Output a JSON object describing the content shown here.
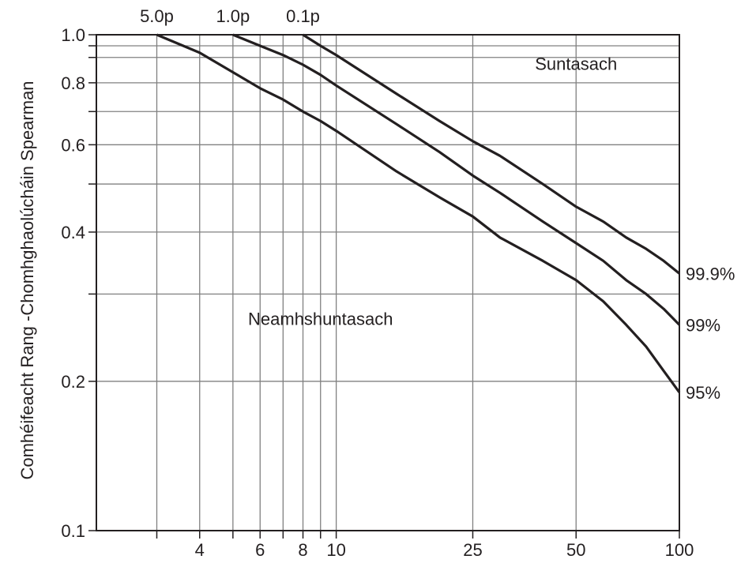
{
  "chart_data": {
    "type": "line",
    "title": "",
    "xlabel": "",
    "ylabel": "Comhéifeacht Rang -Chomhghaolúcháin Spearman",
    "x_scale": "log",
    "y_scale": "log",
    "xlim": [
      2,
      100
    ],
    "ylim": [
      0.1,
      1.0
    ],
    "x_ticks": [
      {
        "value": 4,
        "label": "4"
      },
      {
        "value": 6,
        "label": "6"
      },
      {
        "value": 8,
        "label": "8"
      },
      {
        "value": 10,
        "label": "10"
      },
      {
        "value": 25,
        "label": "25"
      },
      {
        "value": 50,
        "label": "50"
      },
      {
        "value": 100,
        "label": "100"
      }
    ],
    "x_gridlines": [
      3,
      4,
      5,
      6,
      7,
      8,
      9,
      10,
      25,
      50,
      100
    ],
    "y_ticks": [
      {
        "value": 0.1,
        "label": "0.1"
      },
      {
        "value": 0.2,
        "label": "0.2"
      },
      {
        "value": 0.4,
        "label": "0.4"
      },
      {
        "value": 0.6,
        "label": "0.6"
      },
      {
        "value": 0.8,
        "label": "0.8"
      },
      {
        "value": 1.0,
        "label": "1.0"
      }
    ],
    "y_gridlines": [
      0.3,
      0.5,
      0.7,
      0.9,
      0.95
    ],
    "grid": true,
    "top_labels": [
      {
        "value": 3,
        "label": "5.0p"
      },
      {
        "value": 5,
        "label": "1.0p"
      },
      {
        "value": 8,
        "label": "0.1p"
      }
    ],
    "series": [
      {
        "name": "95%",
        "x": [
          3,
          4,
          5,
          6,
          7,
          8,
          9,
          10,
          15,
          20,
          25,
          30,
          40,
          50,
          60,
          70,
          80,
          90,
          100
        ],
        "y": [
          1.0,
          0.92,
          0.84,
          0.78,
          0.74,
          0.7,
          0.67,
          0.64,
          0.53,
          0.47,
          0.43,
          0.39,
          0.35,
          0.32,
          0.29,
          0.26,
          0.235,
          0.21,
          0.19
        ]
      },
      {
        "name": "99%",
        "x": [
          5,
          6,
          7,
          8,
          9,
          10,
          15,
          20,
          25,
          30,
          40,
          50,
          60,
          70,
          80,
          90,
          100
        ],
        "y": [
          1.0,
          0.95,
          0.91,
          0.87,
          0.83,
          0.79,
          0.66,
          0.58,
          0.52,
          0.48,
          0.42,
          0.38,
          0.35,
          0.32,
          0.3,
          0.28,
          0.26
        ]
      },
      {
        "name": "99.9%",
        "x": [
          8,
          9,
          10,
          15,
          20,
          25,
          30,
          40,
          50,
          60,
          70,
          80,
          90,
          100
        ],
        "y": [
          1.0,
          0.95,
          0.91,
          0.76,
          0.67,
          0.61,
          0.57,
          0.5,
          0.45,
          0.42,
          0.39,
          0.37,
          0.35,
          0.33
        ]
      }
    ],
    "annotations": [
      {
        "text": "Suntasach",
        "x": 50,
        "y": 0.85
      },
      {
        "text": "Neamhshuntasach",
        "x": 9,
        "y": 0.26
      }
    ]
  }
}
